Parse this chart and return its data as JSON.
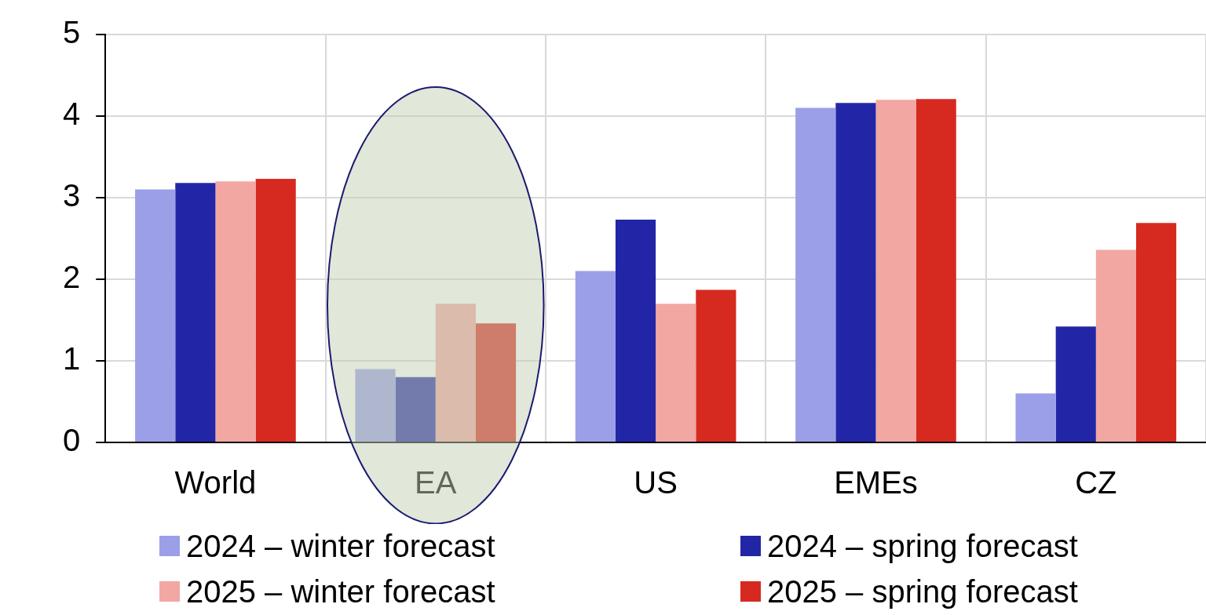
{
  "chart_data": {
    "type": "bar",
    "categories": [
      "World",
      "EA",
      "US",
      "EMEs",
      "CZ"
    ],
    "series": [
      {
        "name": "2024 – winter forecast",
        "color": "#9b9fe8",
        "values": [
          3.1,
          0.9,
          2.1,
          4.1,
          0.6
        ]
      },
      {
        "name": "2024 – spring forecast",
        "color": "#2226a6",
        "values": [
          3.18,
          0.8,
          2.73,
          4.16,
          1.42
        ]
      },
      {
        "name": "2025 – winter forecast",
        "color": "#f2a7a2",
        "values": [
          3.2,
          1.7,
          1.7,
          4.2,
          2.36
        ]
      },
      {
        "name": "2025 – spring forecast",
        "color": "#d62a20",
        "values": [
          3.23,
          1.46,
          1.87,
          4.21,
          2.69
        ]
      }
    ],
    "ylim": [
      0,
      5
    ],
    "yticks": [
      0,
      1,
      2,
      3,
      4,
      5
    ],
    "grid": true,
    "legend": "bottom"
  }
}
